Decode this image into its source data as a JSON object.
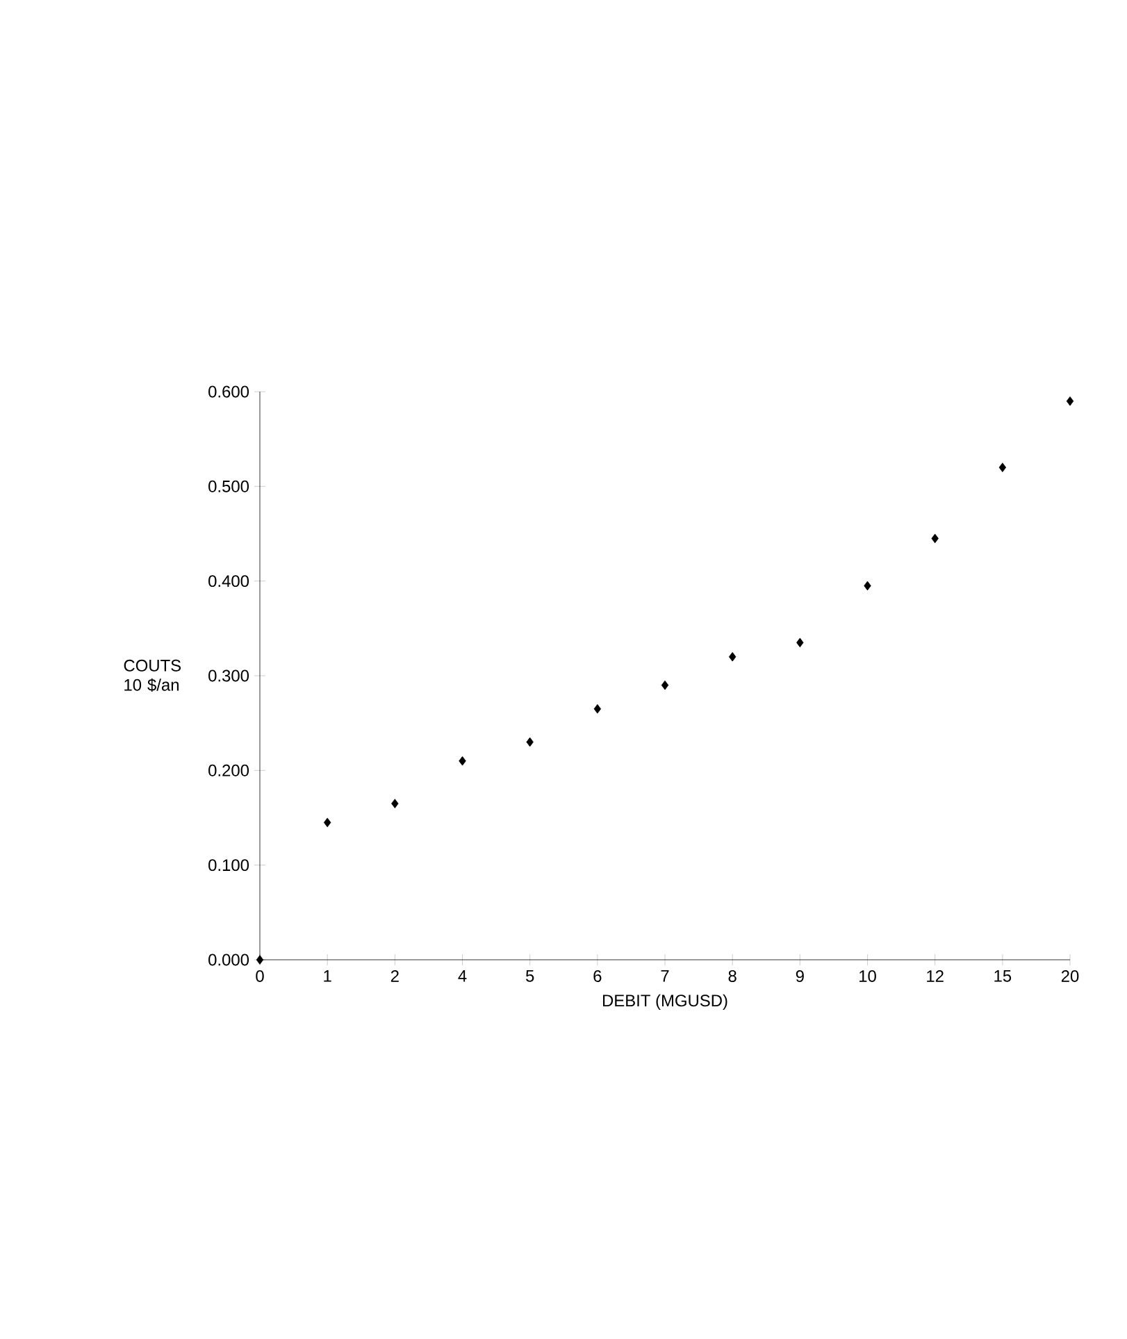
{
  "chart_data": {
    "type": "scatter",
    "xlabel": "DEBIT (MGUSD)",
    "ylabel": "COUTS 10 $/an",
    "categories": [
      "0",
      "1",
      "2",
      "4",
      "5",
      "6",
      "7",
      "8",
      "9",
      "10",
      "12",
      "15",
      "20"
    ],
    "values": [
      0,
      0.145,
      0.165,
      0.21,
      0.23,
      0.265,
      0.29,
      0.32,
      0.335,
      0.395,
      0.445,
      0.52,
      0.59
    ],
    "color": "#000000",
    "marker": "diamond",
    "ylim": [
      0,
      0.6
    ],
    "yticks": [
      {
        "value": 0,
        "label": "0.000"
      },
      {
        "value": 0.1,
        "label": "0.100"
      },
      {
        "value": 0.2,
        "label": "0.200"
      },
      {
        "value": 0.3,
        "label": "0.300"
      },
      {
        "value": 0.4,
        "label": "0.400"
      },
      {
        "value": 0.5,
        "label": "0.500"
      },
      {
        "value": 0.6,
        "label": "0.600"
      }
    ],
    "grid": false
  }
}
